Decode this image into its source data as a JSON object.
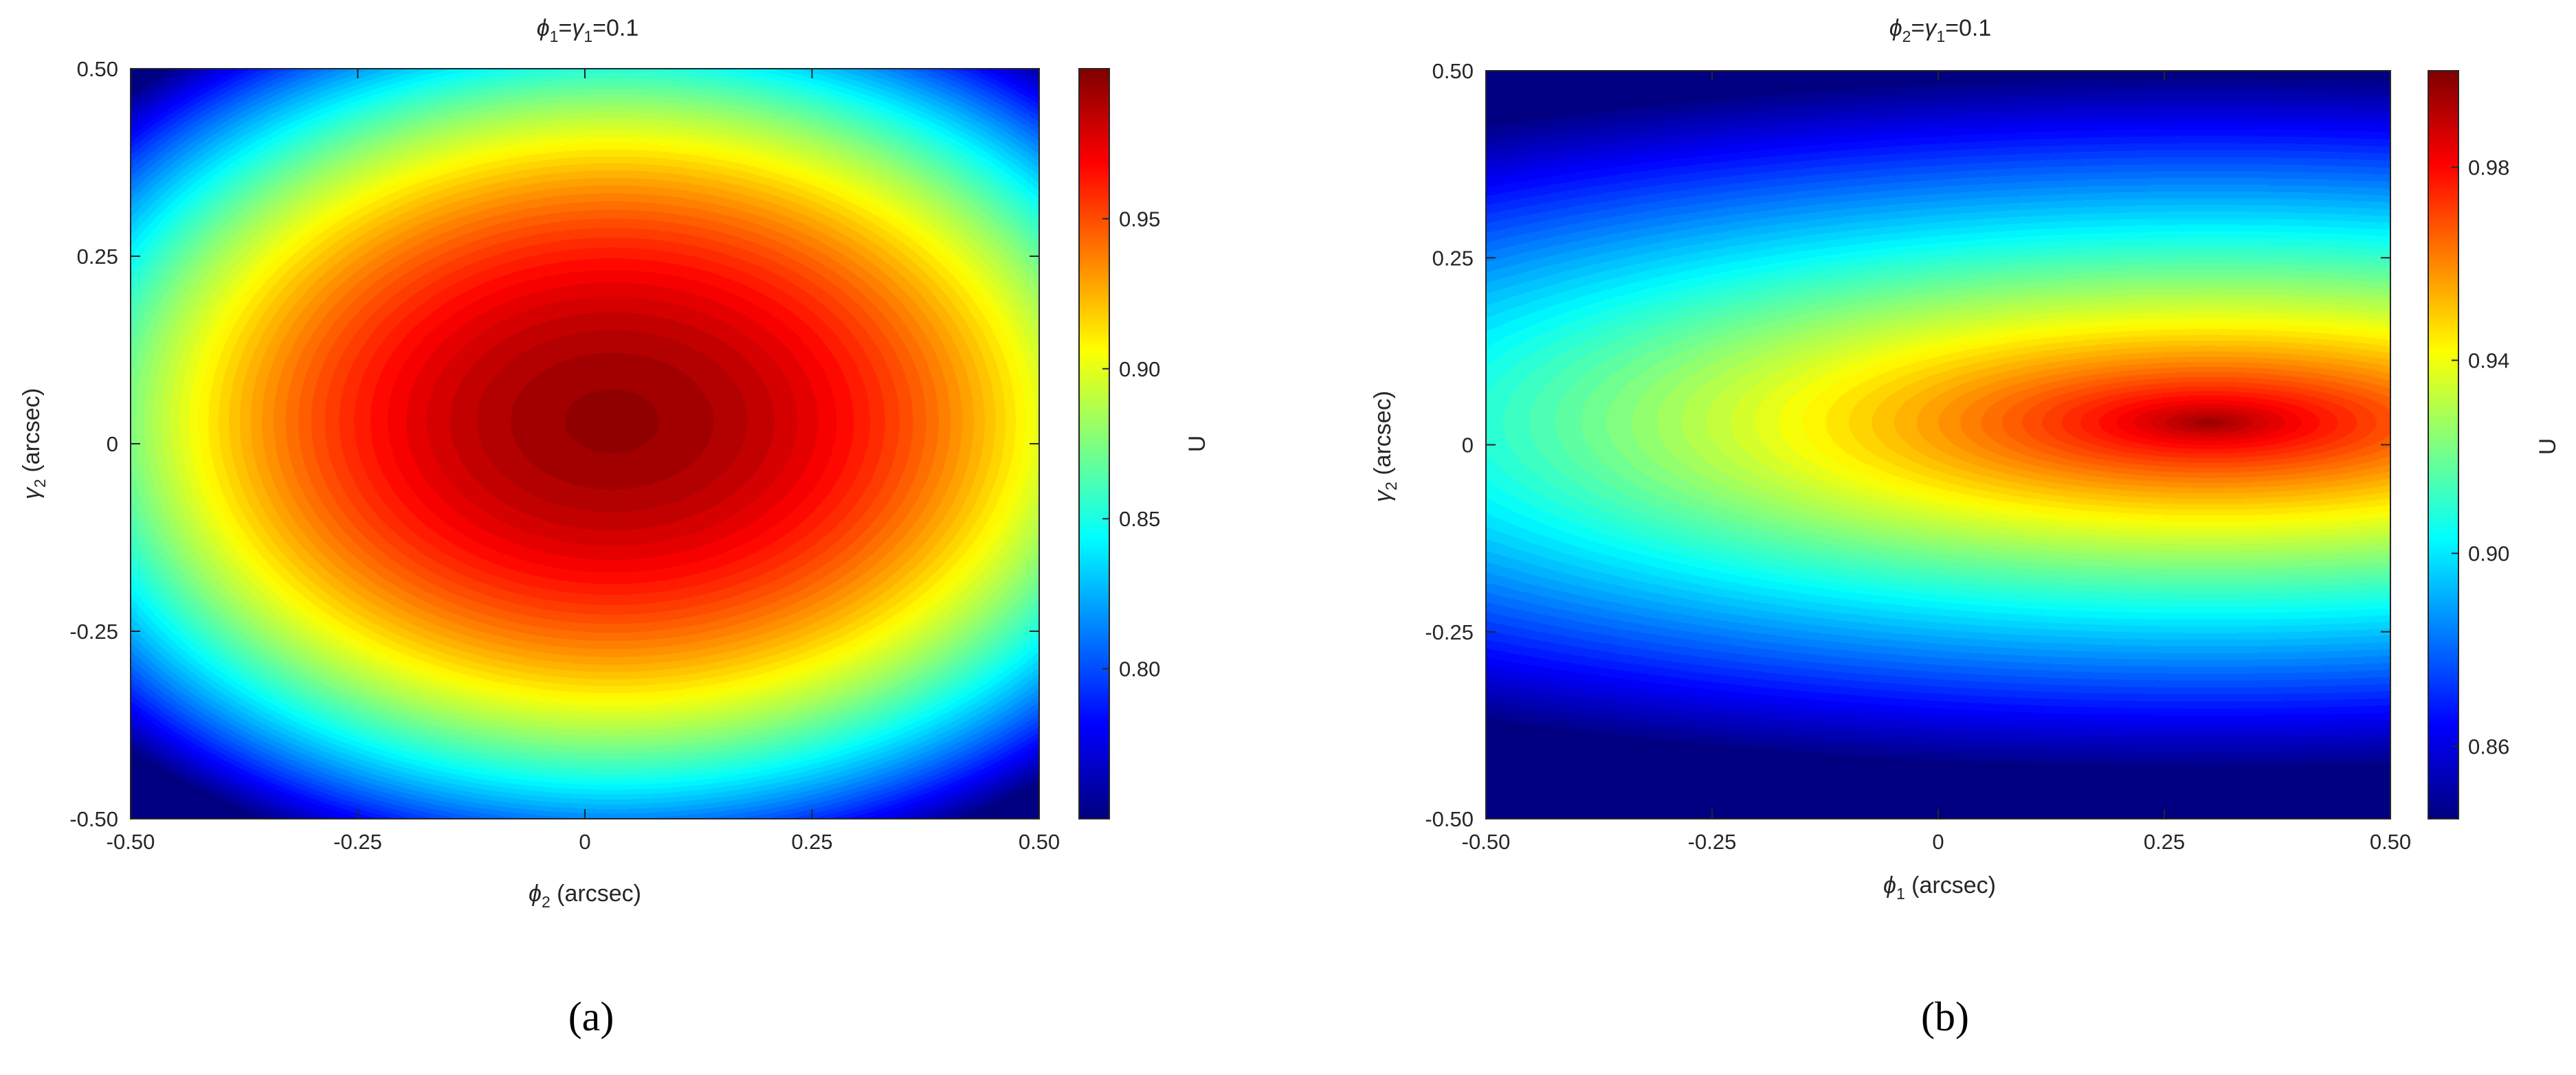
{
  "chart_data": [
    {
      "type": "heatmap",
      "panel_label": "(a)",
      "title": "ϕ1=γ1=0.1",
      "title_parts": {
        "sym1": "ϕ",
        "sub1": "1",
        "sym2": "γ",
        "sub2": "1",
        "tail": "=0.1"
      },
      "xlabel_parts": {
        "sym": "ϕ",
        "sub": "2",
        "tail": " (arcsec)"
      },
      "ylabel_parts": {
        "sym": "γ",
        "sub": "2",
        "tail": " (arcsec)"
      },
      "xlim": [
        -0.5,
        0.5
      ],
      "ylim": [
        -0.5,
        0.5
      ],
      "xticks": [
        "-0.50",
        "-0.25",
        "0",
        "0.25",
        "0.50"
      ],
      "yticks": [
        "-0.50",
        "-0.25",
        "0",
        "0.25",
        "0.50"
      ],
      "colorbar": {
        "label": "U",
        "range": [
          0.75,
          1.0
        ],
        "ticks": [
          "0.80",
          "0.85",
          "0.90",
          "0.95"
        ],
        "colormap": "jet"
      },
      "model": {
        "center": [
          0.03,
          0.03
        ],
        "peak": 0.997,
        "ax": 0.76,
        "ay": 0.62,
        "q": 1.0,
        "vmin": 0.75,
        "vmax": 1.0
      },
      "grid": false
    },
    {
      "type": "heatmap",
      "panel_label": "(b)",
      "title": "ϕ2=γ1=0.1",
      "title_parts": {
        "sym1": "ϕ",
        "sub1": "2",
        "sym2": "γ",
        "sub2": "1",
        "tail": "=0.1"
      },
      "xlabel_parts": {
        "sym": "ϕ",
        "sub": "1",
        "tail": " (arcsec)"
      },
      "ylabel_parts": {
        "sym": "γ",
        "sub": "2",
        "tail": " (arcsec)"
      },
      "xlim": [
        -0.5,
        0.5
      ],
      "ylim": [
        -0.5,
        0.5
      ],
      "xticks": [
        "-0.50",
        "-0.25",
        "0",
        "0.25",
        "0.50"
      ],
      "yticks": [
        "-0.50",
        "-0.25",
        "0",
        "0.25",
        "0.50"
      ],
      "colorbar": {
        "label": "U",
        "range": [
          0.845,
          1.0
        ],
        "ticks": [
          "0.86",
          "0.90",
          "0.94",
          "0.98"
        ],
        "colormap": "jet"
      },
      "model": {
        "center": [
          0.3,
          0.03
        ],
        "peak": 0.999,
        "ax": 1.6,
        "ay": 0.47,
        "q": 0.4,
        "vmin": 0.845,
        "vmax": 1.0
      },
      "grid": false
    }
  ]
}
